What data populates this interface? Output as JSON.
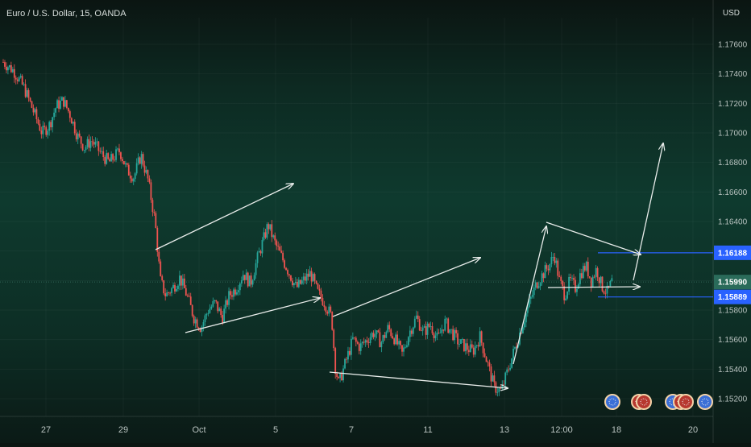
{
  "header": {
    "title": "Euro / U.S. Dollar, 15, OANDA",
    "currency": "USD"
  },
  "chart_data": {
    "type": "candlestick",
    "x_ticks": [
      "27",
      "29",
      "Oct",
      "5",
      "7",
      "11",
      "13",
      "12:00",
      "18",
      "20"
    ],
    "y_ticks": [
      "1.17600",
      "1.17400",
      "1.17200",
      "1.17000",
      "1.16800",
      "1.16600",
      "1.16400",
      "1.16200",
      "1.16000",
      "1.15800",
      "1.15600",
      "1.15400",
      "1.15200"
    ],
    "ylim": [
      1.1508,
      1.1778
    ],
    "price_labels": [
      {
        "label": "1.16188",
        "value": 1.16188,
        "color": "#2962ff"
      },
      {
        "label": "1.15990",
        "value": 1.1599,
        "color": "#2a6b5a"
      },
      {
        "label": "1.15889",
        "value": 1.15889,
        "color": "#2962ff"
      }
    ],
    "current_price": 1.1599,
    "price_path": [
      [
        0,
        1.1748
      ],
      [
        6,
        1.1742
      ],
      [
        12,
        1.173
      ],
      [
        18,
        1.1712
      ],
      [
        22,
        1.17
      ],
      [
        26,
        1.1705
      ],
      [
        30,
        1.1718
      ],
      [
        34,
        1.1722
      ],
      [
        38,
        1.1712
      ],
      [
        42,
        1.1698
      ],
      [
        46,
        1.169
      ],
      [
        50,
        1.1695
      ],
      [
        56,
        1.1685
      ],
      [
        60,
        1.168
      ],
      [
        66,
        1.1688
      ],
      [
        70,
        1.1675
      ],
      [
        74,
        1.167
      ],
      [
        78,
        1.1685
      ],
      [
        82,
        1.1668
      ],
      [
        86,
        1.164
      ],
      [
        89,
        1.16
      ],
      [
        92,
        1.159
      ],
      [
        96,
        1.1595
      ],
      [
        100,
        1.1602
      ],
      [
        104,
        1.159
      ],
      [
        108,
        1.1575
      ],
      [
        112,
        1.1568
      ],
      [
        116,
        1.158
      ],
      [
        120,
        1.1585
      ],
      [
        124,
        1.1575
      ],
      [
        128,
        1.159
      ],
      [
        132,
        1.1595
      ],
      [
        136,
        1.1605
      ],
      [
        140,
        1.1598
      ],
      [
        144,
        1.1615
      ],
      [
        148,
        1.163
      ],
      [
        150,
        1.1638
      ],
      [
        154,
        1.1625
      ],
      [
        158,
        1.1615
      ],
      [
        162,
        1.1605
      ],
      [
        166,
        1.1595
      ],
      [
        170,
        1.16
      ],
      [
        174,
        1.1605
      ],
      [
        178,
        1.1592
      ],
      [
        182,
        1.1585
      ],
      [
        186,
        1.1575
      ],
      [
        188,
        1.1542
      ],
      [
        190,
        1.153
      ],
      [
        194,
        1.1545
      ],
      [
        198,
        1.156
      ],
      [
        202,
        1.1555
      ],
      [
        206,
        1.156
      ],
      [
        210,
        1.1565
      ],
      [
        214,
        1.1558
      ],
      [
        218,
        1.1568
      ],
      [
        222,
        1.156
      ],
      [
        226,
        1.155
      ],
      [
        230,
        1.1565
      ],
      [
        234,
        1.1575
      ],
      [
        238,
        1.1565
      ],
      [
        242,
        1.157
      ],
      [
        246,
        1.156
      ],
      [
        250,
        1.1572
      ],
      [
        254,
        1.1565
      ],
      [
        258,
        1.1558
      ],
      [
        262,
        1.1555
      ],
      [
        266,
        1.1552
      ],
      [
        270,
        1.1562
      ],
      [
        274,
        1.1545
      ],
      [
        278,
        1.1528
      ],
      [
        282,
        1.1525
      ],
      [
        286,
        1.154
      ],
      [
        290,
        1.1555
      ],
      [
        294,
        1.157
      ],
      [
        298,
        1.1585
      ],
      [
        302,
        1.1598
      ],
      [
        306,
        1.1605
      ],
      [
        310,
        1.1612
      ],
      [
        312,
        1.1618
      ],
      [
        315,
        1.16
      ],
      [
        318,
        1.159
      ],
      [
        321,
        1.16
      ],
      [
        324,
        1.1595
      ],
      [
        327,
        1.1605
      ],
      [
        330,
        1.161
      ],
      [
        333,
        1.16
      ],
      [
        336,
        1.1608
      ],
      [
        339,
        1.1596
      ],
      [
        342,
        1.1592
      ],
      [
        345,
        1.16
      ]
    ],
    "price_path_x_range": [
      0,
      345
    ],
    "annotations": [
      {
        "type": "arrow",
        "from": [
          2,
          1.1601
        ],
        "to": [
          182,
          1.16555
        ]
      },
      {
        "type": "arrow",
        "from": [
          8,
          1.15642
        ],
        "to": [
          172,
          1.15818
        ]
      },
      {
        "type": "arrow",
        "from": [
          182,
          1.15742
        ],
        "to": [
          350,
          1.1607
        ]
      },
      {
        "type": "arrow",
        "from": [
          190,
          1.15298
        ],
        "to": [
          350,
          1.15221
        ]
      },
      {
        "type": "arrow",
        "from": [
          282,
          1.1527
        ],
        "to": [
          325,
          1.163
        ]
      },
      {
        "type": "arrow",
        "from": [
          328,
          1.163
        ],
        "to": [
          395,
          1.16115
        ]
      },
      {
        "type": "arrow",
        "from": [
          330,
          1.15868
        ],
        "to": [
          395,
          1.15878
        ]
      },
      {
        "type": "arrow",
        "from": [
          375,
          1.15908
        ],
        "to": [
          395,
          1.1684
        ]
      }
    ]
  },
  "icons": [
    {
      "name": "event-flag-eu-icon",
      "color": "#3b6fd6"
    },
    {
      "name": "event-flag-us-icon",
      "color": "#b7382f"
    },
    {
      "name": "event-flag-eu-icon",
      "color": "#3b6fd6"
    },
    {
      "name": "event-flag-us-icon",
      "color": "#b7382f"
    },
    {
      "name": "event-flag-eu-icon",
      "color": "#3b6fd6"
    }
  ],
  "colors": {
    "up": "#26a69a",
    "down": "#ef5350",
    "wick": "#c9d3d0",
    "annotation": "#e8ecea",
    "axis_text": "#b9c3c0"
  }
}
